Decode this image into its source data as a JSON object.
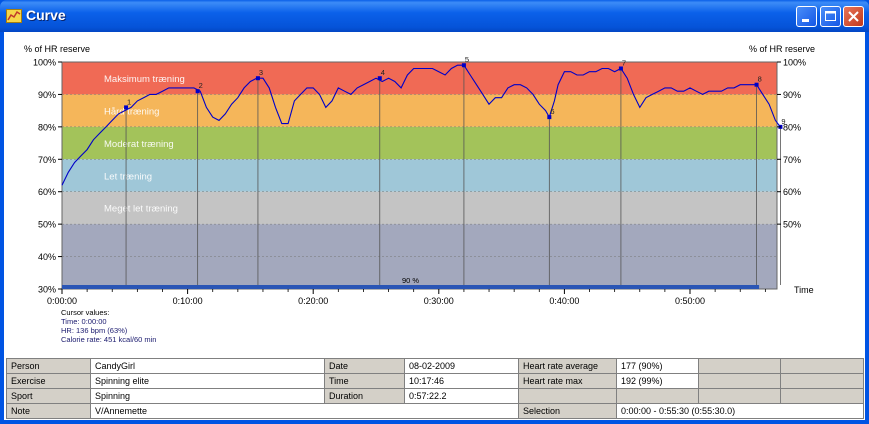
{
  "window": {
    "title": "Curve",
    "icon": "chart-icon"
  },
  "titlebar_buttons": [
    "minimize-icon",
    "maximize-icon",
    "close-icon"
  ],
  "colors": {
    "zone_max": "#f06a55",
    "zone_hard": "#f5b65a",
    "zone_moderate": "#a3c35a",
    "zone_light": "#9fc7d8",
    "zone_very_light": "#c4c4c4",
    "zone_base": "#a3a8bd",
    "curve": "#0000c8",
    "selection_bar": "#2a55b5"
  },
  "chart_data": {
    "type": "line",
    "ylabel_left": "% of HR reserve",
    "ylabel_right": "% of HR reserve",
    "xlabel": "Time",
    "ylim": [
      30,
      100
    ],
    "xlim_minutes": [
      0,
      57.4
    ],
    "y_ticks": [
      "30%",
      "40%",
      "50%",
      "60%",
      "70%",
      "80%",
      "90%",
      "100%"
    ],
    "y_ticks_right": [
      "50%",
      "60%",
      "70%",
      "80%",
      "90%",
      "100%"
    ],
    "x_ticks": [
      "0:00:00",
      "0:10:00",
      "0:20:00",
      "0:30:00",
      "0:40:00",
      "0:50:00"
    ],
    "zones": [
      {
        "label": "Maksimum træning",
        "from": 90,
        "to": 100,
        "color": "#f06a55"
      },
      {
        "label": "Hård træning",
        "from": 80,
        "to": 90,
        "color": "#f5b65a"
      },
      {
        "label": "Moderat træning",
        "from": 70,
        "to": 80,
        "color": "#a3c35a"
      },
      {
        "label": "Let træning",
        "from": 60,
        "to": 70,
        "color": "#9fc7d8"
      },
      {
        "label": "Meget let træning",
        "from": 50,
        "to": 60,
        "color": "#c4c4c4"
      },
      {
        "label": "",
        "from": 30,
        "to": 50,
        "color": "#a3a8bd"
      }
    ],
    "laps": [
      {
        "label": "1",
        "t": 5.1,
        "value": 86
      },
      {
        "label": "2",
        "t": 10.8,
        "value": 91
      },
      {
        "label": "3",
        "t": 15.6,
        "value": 95
      },
      {
        "label": "4",
        "t": 25.3,
        "value": 95
      },
      {
        "label": "5",
        "t": 32.0,
        "value": 99
      },
      {
        "label": "6",
        "t": 38.8,
        "value": 83
      },
      {
        "label": "7",
        "t": 44.5,
        "value": 98
      },
      {
        "label": "8",
        "t": 55.3,
        "value": 93
      },
      {
        "label": "9",
        "t": 57.2,
        "value": 80
      }
    ],
    "series": [
      {
        "points": [
          [
            0,
            62
          ],
          [
            0.5,
            66
          ],
          [
            1,
            69
          ],
          [
            1.5,
            71
          ],
          [
            2,
            73
          ],
          [
            2.5,
            76
          ],
          [
            3,
            78
          ],
          [
            3.5,
            80
          ],
          [
            4,
            82
          ],
          [
            4.5,
            84
          ],
          [
            5,
            85
          ],
          [
            5.5,
            86
          ],
          [
            6,
            88
          ],
          [
            6.5,
            89
          ],
          [
            7,
            90
          ],
          [
            7.5,
            90
          ],
          [
            8,
            91
          ],
          [
            8.5,
            92
          ],
          [
            9,
            92
          ],
          [
            9.5,
            92
          ],
          [
            10,
            92
          ],
          [
            10.5,
            92
          ],
          [
            11,
            91
          ],
          [
            11.5,
            86
          ],
          [
            12,
            83
          ],
          [
            12.5,
            82
          ],
          [
            13,
            84
          ],
          [
            13.5,
            87
          ],
          [
            14,
            89
          ],
          [
            14.5,
            92
          ],
          [
            15,
            94
          ],
          [
            15.5,
            95
          ],
          [
            16,
            95
          ],
          [
            16.5,
            92
          ],
          [
            17,
            86
          ],
          [
            17.5,
            81
          ],
          [
            18,
            81
          ],
          [
            18.5,
            88
          ],
          [
            19,
            90
          ],
          [
            19.5,
            92
          ],
          [
            20,
            92
          ],
          [
            20.5,
            90
          ],
          [
            21,
            86
          ],
          [
            21.5,
            88
          ],
          [
            22,
            92
          ],
          [
            22.5,
            91
          ],
          [
            23,
            90
          ],
          [
            23.5,
            92
          ],
          [
            24,
            93
          ],
          [
            24.5,
            94
          ],
          [
            25,
            95
          ],
          [
            25.5,
            94
          ],
          [
            26,
            95
          ],
          [
            26.5,
            94
          ],
          [
            27,
            92
          ],
          [
            27.5,
            96
          ],
          [
            28,
            98
          ],
          [
            28.5,
            98
          ],
          [
            29,
            98
          ],
          [
            29.5,
            98
          ],
          [
            30,
            97
          ],
          [
            30.5,
            96
          ],
          [
            31,
            98
          ],
          [
            31.5,
            99
          ],
          [
            32,
            99
          ],
          [
            32.5,
            96
          ],
          [
            33,
            93
          ],
          [
            33.5,
            90
          ],
          [
            34,
            87
          ],
          [
            34.5,
            89
          ],
          [
            35,
            89
          ],
          [
            35.5,
            92
          ],
          [
            36,
            93
          ],
          [
            36.5,
            93
          ],
          [
            37,
            92
          ],
          [
            37.5,
            90
          ],
          [
            38,
            87
          ],
          [
            38.5,
            85
          ],
          [
            38.8,
            83
          ],
          [
            39.2,
            88
          ],
          [
            39.5,
            93
          ],
          [
            40,
            97
          ],
          [
            40.5,
            97
          ],
          [
            41,
            96
          ],
          [
            41.5,
            96
          ],
          [
            42,
            97
          ],
          [
            42.5,
            97
          ],
          [
            43,
            98
          ],
          [
            43.5,
            98
          ],
          [
            44,
            97
          ],
          [
            44.5,
            98
          ],
          [
            45,
            95
          ],
          [
            45.5,
            90
          ],
          [
            46,
            86
          ],
          [
            46.5,
            89
          ],
          [
            47,
            90
          ],
          [
            47.5,
            91
          ],
          [
            48,
            92
          ],
          [
            48.5,
            92
          ],
          [
            49,
            91
          ],
          [
            49.5,
            91
          ],
          [
            50,
            92
          ],
          [
            50.5,
            91
          ],
          [
            51,
            90
          ],
          [
            51.5,
            91
          ],
          [
            52,
            91
          ],
          [
            52.5,
            91
          ],
          [
            53,
            92
          ],
          [
            53.5,
            92
          ],
          [
            54,
            93
          ],
          [
            54.5,
            93
          ],
          [
            55,
            93
          ],
          [
            55.3,
            93
          ],
          [
            55.8,
            90
          ],
          [
            56.3,
            87
          ],
          [
            56.8,
            82
          ],
          [
            57.2,
            80
          ]
        ]
      }
    ],
    "selection_label": "90 %",
    "cursor_values": {
      "title": "Cursor values:",
      "time": "Time: 0:00:00",
      "hr": "HR: 136 bpm (63%)",
      "calorie": "Calorie rate: 451 kcal/60 min"
    }
  },
  "info": {
    "person_label": "Person",
    "person_value": "CandyGirl",
    "date_label": "Date",
    "date_value": "08-02-2009",
    "hr_avg_label": "Heart rate average",
    "hr_avg_value": "177 (90%)",
    "exercise_label": "Exercise",
    "exercise_value": "Spinning elite",
    "time_label": "Time",
    "time_value": "10:17:46",
    "hr_max_label": "Heart rate max",
    "hr_max_value": "192 (99%)",
    "sport_label": "Sport",
    "sport_value": "Spinning",
    "duration_label": "Duration",
    "duration_value": "0:57:22.2",
    "note_label": "Note",
    "note_value": "V/Annemette",
    "selection_label": "Selection",
    "selection_value": "0:00:00 - 0:55:30 (0:55:30.0)"
  }
}
